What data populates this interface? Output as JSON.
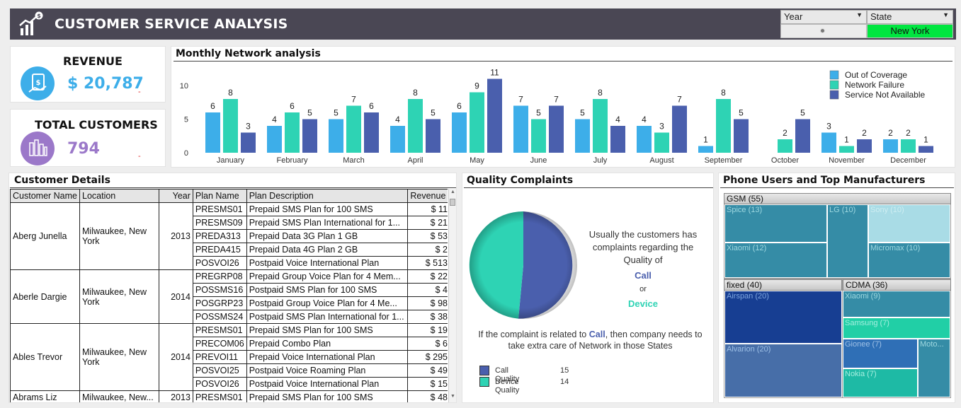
{
  "header": {
    "title": "CUSTOMER SERVICE ANALYSIS",
    "year_label": "Year",
    "state_label": "State",
    "state_value": "New York"
  },
  "kpi": {
    "revenue_label": "REVENUE",
    "revenue_value": "$ 20,787",
    "revenue_mark": "-",
    "customers_label": "TOTAL CUSTOMERS",
    "customers_value": "794",
    "customers_mark": "-"
  },
  "chart_data": {
    "type": "bar",
    "title": "Monthly Network analysis",
    "categories": [
      "January",
      "February",
      "March",
      "April",
      "May",
      "June",
      "July",
      "August",
      "September",
      "October",
      "November",
      "December"
    ],
    "series": [
      {
        "name": "Out of Coverage",
        "color": "#3daee9",
        "values": [
          6,
          4,
          5,
          4,
          6,
          7,
          5,
          4,
          1,
          null,
          3,
          2
        ]
      },
      {
        "name": "Network Failure",
        "color": "#2ed3b4",
        "values": [
          8,
          6,
          7,
          8,
          9,
          5,
          8,
          3,
          8,
          2,
          1,
          2
        ]
      },
      {
        "name": "Service Not Available",
        "color": "#4a5fad",
        "values": [
          3,
          5,
          6,
          5,
          11,
          7,
          4,
          7,
          5,
          5,
          2,
          1
        ]
      }
    ],
    "yticks": [
      0,
      5,
      10
    ],
    "ylim": [
      0,
      12
    ],
    "legend": "top-right"
  },
  "table": {
    "title": "Customer Details",
    "headers": [
      "Customer Name",
      "Location",
      "Year",
      "Plan Name",
      "Plan Description",
      "Revenue"
    ],
    "groups": [
      {
        "name": "Aberg Junella",
        "location": "Milwaukee,  New York",
        "year": "2013",
        "rows": [
          [
            "PRESMS01",
            "Prepaid SMS Plan for 100 SMS",
            "$ 11"
          ],
          [
            "PRESMS09",
            "Prepaid SMS Plan International for 1...",
            "$ 21"
          ],
          [
            "PREDA313",
            "Prepaid Data 3G Plan 1 GB",
            "$ 53"
          ],
          [
            "PREDA415",
            "Prepaid Data 4G Plan 2 GB",
            "$ 2"
          ],
          [
            "POSVOI26",
            "Postpaid Voice International Plan",
            "$ 513"
          ]
        ]
      },
      {
        "name": "Aberle Dargie",
        "location": "Milwaukee,  New York",
        "year": "2014",
        "rows": [
          [
            "PREGRP08",
            "Prepaid Group Voice Plan for 4 Mem...",
            "$ 22"
          ],
          [
            "POSSMS16",
            "Postpaid SMS Plan for 100 SMS",
            "$ 4"
          ],
          [
            "POSGRP23",
            "Postpaid Group Voice Plan for 4 Me...",
            "$ 98"
          ],
          [
            "POSSMS24",
            "Postpaid SMS Plan International for 1...",
            "$ 38"
          ]
        ]
      },
      {
        "name": "Ables Trevor",
        "location": "Milwaukee,  New York",
        "year": "2014",
        "rows": [
          [
            "PRESMS01",
            "Prepaid SMS Plan for 100 SMS",
            "$ 19"
          ],
          [
            "PRECOM06",
            "Prepaid Combo Plan",
            "$ 6"
          ],
          [
            "PREVOI11",
            "Prepaid Voice International Plan",
            "$ 295"
          ],
          [
            "POSVOI25",
            "Postpaid Voice Roaming Plan",
            "$ 49"
          ],
          [
            "POSVOI26",
            "Postpaid Voice International Plan",
            "$ 15"
          ]
        ]
      },
      {
        "name": "Abrams Liz",
        "location": "Milwaukee,  New...",
        "year": "2013",
        "rows": [
          [
            "PRESMS01",
            "Prepaid SMS Plan for 100 SMS",
            "$ 48"
          ]
        ]
      }
    ]
  },
  "quality": {
    "title": "Quality Complaints",
    "text1": "Usually the customers has complaints regarding the Quality of",
    "call_word": "Call",
    "or_word": "or",
    "device_word": "Device",
    "bottom_pre": "If the complaint is related to",
    "bottom_call": "Call",
    "bottom_post": ", then company needs to take extra care of Network in those States",
    "legend": [
      {
        "label": "Call Quality",
        "value": "15",
        "color": "#4a5fad"
      },
      {
        "label": "Device Quality",
        "value": "14",
        "color": "#2ed3b4"
      }
    ]
  },
  "treemap": {
    "title": "Phone Users and Top Manufacturers",
    "gsm_label": "GSM (55)",
    "fixed_label": "fixed (40)",
    "cdma_label": "CDMA (36)",
    "gsm": [
      "Spice (13)",
      "LG (10)",
      "Sony (10)",
      "Xiaomi (12)",
      "Micromax (10)"
    ],
    "fixed": [
      "Airspan (20)",
      "Alvarion (20)"
    ],
    "cdma": [
      "Xiaomi (9)",
      "Samsung (7)",
      "Gionee (7)",
      "Moto...",
      "Nokia (7)"
    ]
  }
}
